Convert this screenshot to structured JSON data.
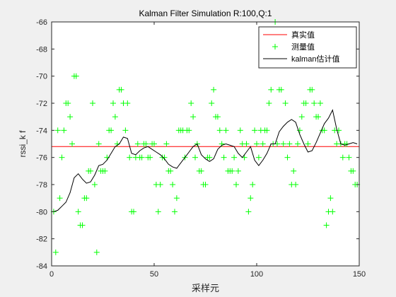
{
  "chart_data": {
    "type": "line",
    "title": "Kalman Filter Simulation R:100,Q:1",
    "xlabel": "采样元",
    "ylabel": "rssi_k f",
    "xlim": [
      0,
      150
    ],
    "ylim": [
      -84,
      -66
    ],
    "xticks": [
      "0",
      "50",
      "100",
      "150"
    ],
    "yticks": [
      "-84",
      "-82",
      "-80",
      "-78",
      "-76",
      "-74",
      "-72",
      "-70",
      "-68",
      "-66"
    ],
    "grid": false,
    "legend_position": "top-right",
    "series": [
      {
        "name": "真实值",
        "style": "line",
        "color": "#ff0000",
        "x": [
          0,
          150
        ],
        "y": [
          -75.2,
          -75.2
        ]
      },
      {
        "name": "测量值",
        "style": "markers-plus",
        "color": "#00ff00",
        "x": [
          1,
          2,
          3,
          4,
          5,
          6,
          7,
          8,
          9,
          10,
          11,
          12,
          13,
          14,
          15,
          16,
          17,
          18,
          19,
          20,
          21,
          22,
          23,
          24,
          25,
          26,
          27,
          28,
          29,
          30,
          31,
          32,
          33,
          34,
          35,
          36,
          37,
          38,
          39,
          40,
          41,
          42,
          43,
          44,
          45,
          46,
          47,
          48,
          49,
          50,
          51,
          52,
          53,
          54,
          55,
          56,
          57,
          58,
          59,
          60,
          61,
          62,
          63,
          64,
          65,
          66,
          67,
          68,
          69,
          70,
          71,
          72,
          73,
          74,
          75,
          76,
          77,
          78,
          79,
          80,
          81,
          82,
          83,
          84,
          85,
          86,
          87,
          88,
          89,
          90,
          91,
          92,
          93,
          94,
          95,
          96,
          97,
          98,
          99,
          100,
          101,
          102,
          103,
          104,
          105,
          106,
          107,
          108,
          109,
          110,
          111,
          112,
          113,
          114,
          115,
          116,
          117,
          118,
          119,
          120,
          121,
          122,
          123,
          124,
          125,
          126,
          127,
          128,
          129,
          130,
          131,
          132,
          133,
          134,
          135,
          136,
          137,
          138,
          139,
          140,
          141,
          142,
          143,
          144,
          145,
          146,
          147,
          148,
          149
        ],
        "y": [
          -80,
          -83,
          -74,
          -79,
          -76,
          -74,
          -72,
          -72,
          -73,
          -75,
          -70,
          -70,
          -80,
          -81,
          -81,
          -79,
          -79,
          -77,
          -77,
          -72,
          -78,
          -83,
          -75,
          -77,
          -77,
          -77,
          -76,
          -74,
          -74,
          -72,
          -73,
          -75,
          -71,
          -71,
          -72,
          -74,
          -72,
          -76,
          -80,
          -80,
          -76,
          -75,
          -76,
          -76,
          -75,
          -75,
          -76,
          -76,
          -75,
          -75,
          -78,
          -80,
          -78,
          -76,
          -76,
          -75,
          -77,
          -77,
          -78,
          -80,
          -79,
          -74,
          -74,
          -74,
          -76,
          -74,
          -74,
          -72,
          -73,
          -76,
          -75,
          -77,
          -77,
          -78,
          -78,
          -76,
          -76,
          -72,
          -71,
          -73,
          -73,
          -74,
          -75,
          -76,
          -74,
          -77,
          -77,
          -77,
          -76,
          -78,
          -77,
          -74,
          -75,
          -76,
          -75,
          -80,
          -79,
          -78,
          -74,
          -75,
          -76,
          -74,
          -75,
          -74,
          -74,
          -72,
          -71,
          -75,
          -66,
          -75,
          -71,
          -71,
          -75,
          -72,
          -76,
          -75,
          -78,
          -77,
          -78,
          -75,
          -74,
          -73,
          -72,
          -72,
          -75,
          -71,
          -71,
          -72,
          -73,
          -73,
          -72,
          -74,
          -74,
          -81,
          -80,
          -79,
          -80,
          -74,
          -75,
          -74,
          -75,
          -76,
          -75,
          -75,
          -76,
          -77,
          -77,
          -78,
          -78
        ]
      },
      {
        "name": "kalman估计值",
        "style": "line",
        "color": "#000000",
        "x": [
          1,
          3,
          5,
          7,
          9,
          11,
          13,
          15,
          17,
          19,
          21,
          23,
          25,
          27,
          29,
          31,
          33,
          35,
          37,
          39,
          41,
          43,
          45,
          47,
          49,
          51,
          53,
          55,
          57,
          59,
          61,
          63,
          65,
          67,
          69,
          71,
          73,
          75,
          77,
          79,
          81,
          83,
          85,
          87,
          89,
          91,
          93,
          95,
          97,
          99,
          101,
          103,
          105,
          107,
          109,
          111,
          113,
          115,
          117,
          119,
          121,
          123,
          125,
          127,
          129,
          131,
          133,
          135,
          137,
          139,
          141,
          143,
          145,
          147,
          149
        ],
        "y": [
          -80.0,
          -79.9,
          -79.6,
          -79.3,
          -78.6,
          -77.5,
          -77.2,
          -77.6,
          -77.9,
          -77.8,
          -77.3,
          -76.6,
          -76.5,
          -76.2,
          -75.7,
          -75.2,
          -75.0,
          -74.5,
          -74.6,
          -75.7,
          -75.8,
          -75.5,
          -75.3,
          -75.2,
          -75.4,
          -75.6,
          -75.8,
          -76.1,
          -76.5,
          -76.7,
          -76.8,
          -76.4,
          -76.0,
          -75.6,
          -75.2,
          -75.0,
          -75.8,
          -76.1,
          -76.3,
          -76.1,
          -75.4,
          -75.1,
          -75.0,
          -75.1,
          -75.2,
          -75.7,
          -76.0,
          -75.6,
          -75.2,
          -76.2,
          -76.6,
          -76.2,
          -75.7,
          -75.0,
          -75.0,
          -74.1,
          -73.7,
          -73.4,
          -73.2,
          -73.4,
          -74.3,
          -75.0,
          -75.6,
          -75.5,
          -74.9,
          -74.2,
          -73.5,
          -73.1,
          -72.5,
          -73.9,
          -75.0,
          -75.1,
          -75.0,
          -74.9,
          -75.0
        ]
      }
    ]
  }
}
